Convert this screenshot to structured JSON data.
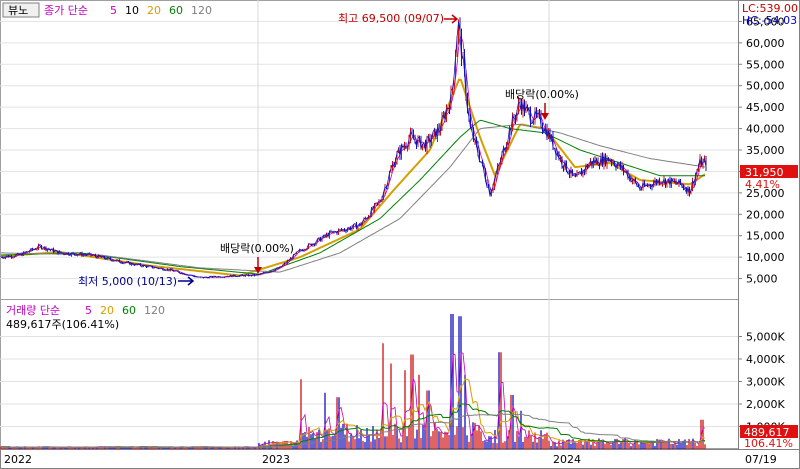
{
  "window": {
    "view_button": "뷰노"
  },
  "price_legend": {
    "prefix": "종가 단순",
    "periods": [
      "5",
      "10",
      "20",
      "60",
      "120"
    ],
    "colors": [
      "#c000c0",
      "#000000",
      "#d4a000",
      "#008000",
      "#808080"
    ]
  },
  "volume_legend": {
    "prefix": "거래량 단순",
    "periods": [
      "5",
      "20",
      "60",
      "120"
    ],
    "colors": [
      "#c000c0",
      "#d4a000",
      "#008000",
      "#808080"
    ],
    "info": "489,617주(106.41%)"
  },
  "top_right": {
    "lc": "LC:539.00",
    "hc": "HC:-54.03"
  },
  "current_price": {
    "value": "31,950",
    "change_pct": "4.41%"
  },
  "current_volume": {
    "value": "489,617",
    "change_pct": "106.41%"
  },
  "annotations": {
    "high": "최고 69,500 (09/07)",
    "low": "최저 5,000 (10/13)",
    "dividend1": "배당락(0.00%)",
    "dividend2": "배당락(0.00%)"
  },
  "colors": {
    "up": "#d01010",
    "down": "#1010c0",
    "price_tag_bg": "#e01010",
    "annotation_red": "#c00000",
    "annotation_blue": "#000090"
  },
  "chart_data": [
    {
      "type": "line",
      "name": "price",
      "x_labels": [
        "2022",
        "2023",
        "2024",
        "07/19"
      ],
      "y_ticks": [
        5000,
        10000,
        15000,
        20000,
        25000,
        30000,
        35000,
        40000,
        45000,
        50000,
        55000,
        60000,
        65000
      ],
      "y_tick_labels": [
        "5,000",
        "10,000",
        "15,000",
        "20,000",
        "25,000",
        "30,000",
        "35,000",
        "40,000",
        "45,000",
        "50,000",
        "55,000",
        "60,000",
        "65,000"
      ],
      "ylim": [
        0,
        70000
      ],
      "close_keyframes": [
        [
          0,
          10000
        ],
        [
          20,
          10500
        ],
        [
          40,
          12500
        ],
        [
          60,
          11000
        ],
        [
          90,
          10500
        ],
        [
          130,
          8500
        ],
        [
          170,
          7000
        ],
        [
          200,
          5200
        ],
        [
          230,
          5600
        ],
        [
          258,
          5800
        ],
        [
          280,
          7500
        ],
        [
          300,
          11500
        ],
        [
          330,
          15500
        ],
        [
          360,
          17500
        ],
        [
          380,
          23000
        ],
        [
          395,
          33000
        ],
        [
          410,
          38000
        ],
        [
          425,
          36000
        ],
        [
          440,
          40000
        ],
        [
          452,
          48000
        ],
        [
          458,
          65000
        ],
        [
          463,
          55000
        ],
        [
          470,
          40000
        ],
        [
          480,
          33000
        ],
        [
          490,
          25000
        ],
        [
          500,
          32000
        ],
        [
          510,
          40000
        ],
        [
          520,
          46000
        ],
        [
          530,
          43000
        ],
        [
          540,
          42000
        ],
        [
          550,
          38000
        ],
        [
          560,
          33000
        ],
        [
          575,
          28000
        ],
        [
          590,
          32000
        ],
        [
          610,
          33000
        ],
        [
          625,
          30000
        ],
        [
          640,
          26000
        ],
        [
          660,
          28000
        ],
        [
          680,
          27000
        ],
        [
          690,
          25500
        ],
        [
          700,
          32000
        ],
        [
          706,
          31950
        ]
      ],
      "ma_keyframes": {
        "ma20": [
          [
            0,
            10200
          ],
          [
            60,
            11200
          ],
          [
            150,
            8000
          ],
          [
            240,
            5700
          ],
          [
            300,
            10000
          ],
          [
            360,
            16500
          ],
          [
            395,
            26000
          ],
          [
            430,
            35000
          ],
          [
            460,
            52000
          ],
          [
            480,
            38000
          ],
          [
            495,
            29000
          ],
          [
            520,
            41000
          ],
          [
            545,
            40000
          ],
          [
            575,
            31000
          ],
          [
            610,
            32000
          ],
          [
            640,
            28000
          ],
          [
            690,
            27000
          ],
          [
            706,
            29500
          ]
        ],
        "ma60": [
          [
            0,
            10500
          ],
          [
            80,
            11000
          ],
          [
            180,
            7800
          ],
          [
            260,
            6000
          ],
          [
            320,
            11000
          ],
          [
            380,
            19000
          ],
          [
            420,
            28000
          ],
          [
            460,
            38000
          ],
          [
            480,
            42000
          ],
          [
            510,
            40000
          ],
          [
            545,
            39000
          ],
          [
            580,
            35000
          ],
          [
            620,
            32000
          ],
          [
            660,
            29000
          ],
          [
            706,
            29000
          ]
        ],
        "ma120": [
          [
            0,
            11000
          ],
          [
            100,
            10500
          ],
          [
            200,
            7500
          ],
          [
            280,
            6500
          ],
          [
            340,
            11000
          ],
          [
            400,
            19000
          ],
          [
            450,
            31000
          ],
          [
            480,
            40000
          ],
          [
            520,
            41000
          ],
          [
            560,
            39000
          ],
          [
            600,
            36000
          ],
          [
            650,
            33000
          ],
          [
            706,
            31000
          ]
        ]
      }
    },
    {
      "type": "bar",
      "name": "volume",
      "y_ticks": [
        1000000,
        2000000,
        3000000,
        4000000,
        5000000
      ],
      "y_tick_labels": [
        "1,000K",
        "2,000K",
        "3,000K",
        "4,000K",
        "5,000K"
      ],
      "ylim": [
        0,
        6000000
      ],
      "spikes": [
        [
          301,
          3100000
        ],
        [
          325,
          2500000
        ],
        [
          338,
          2300000
        ],
        [
          383,
          4700000
        ],
        [
          391,
          3800000
        ],
        [
          405,
          3500000
        ],
        [
          412,
          4200000
        ],
        [
          419,
          3300000
        ],
        [
          428,
          2600000
        ],
        [
          452,
          6000000
        ],
        [
          460,
          5900000
        ],
        [
          465,
          3300000
        ],
        [
          500,
          4300000
        ],
        [
          512,
          2400000
        ],
        [
          521,
          1700000
        ],
        [
          702,
          1300000
        ]
      ]
    }
  ]
}
